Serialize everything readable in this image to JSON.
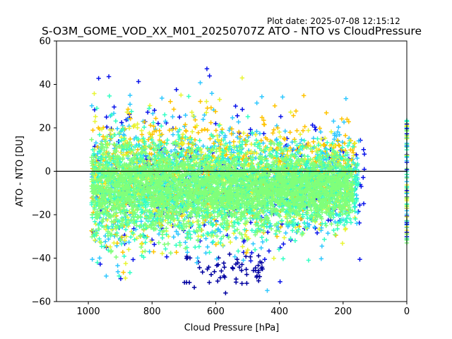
{
  "plot_date": "Plot date: 2025-07-08 12:15:12",
  "chart_data": {
    "type": "scatter",
    "title": "S-O3M_GOME_VOD_XX_M01_20250707Z ATO - NTO vs CloudPressure",
    "xlabel": "Cloud Pressure [hPa]",
    "ylabel": "ATO - NTO [DU]",
    "xlim": [
      1100,
      0
    ],
    "ylim": [
      -60,
      60
    ],
    "x_axis_inverted": true,
    "xticks": [
      1000,
      800,
      600,
      400,
      200,
      0
    ],
    "yticks": [
      -60,
      -40,
      -20,
      0,
      20,
      40,
      60
    ],
    "marker": "+",
    "reference_line_y": 0,
    "grid": false,
    "legend": "none",
    "colors": {
      "light_green": "#80ff7a",
      "cyan_green": "#33ffc4",
      "cyan": "#2fc8ff",
      "yellow": "#e8f533",
      "orange": "#ffc300",
      "blue": "#0a14ea",
      "dark_blue": "#0000a0"
    },
    "point_clouds": [
      {
        "color": "blue",
        "x_range": [
          990,
          130
        ],
        "y_mean": -4,
        "y_spread": 48,
        "count": 320
      },
      {
        "color": "dark_blue",
        "x_range": [
          700,
          450
        ],
        "y_mean": -45,
        "y_spread": 12,
        "count": 60
      },
      {
        "color": "cyan",
        "x_range": [
          990,
          150
        ],
        "y_mean": -5,
        "y_spread": 40,
        "count": 900
      },
      {
        "color": "orange",
        "x_range": [
          990,
          160
        ],
        "y_mean": 0,
        "y_spread": 36,
        "count": 700
      },
      {
        "color": "yellow",
        "x_range": [
          990,
          160
        ],
        "y_mean": -5,
        "y_spread": 38,
        "count": 700
      },
      {
        "color": "cyan_green",
        "x_range": [
          990,
          150
        ],
        "y_mean": -8,
        "y_spread": 32,
        "count": 1600
      },
      {
        "color": "light_green",
        "x_range": [
          990,
          170
        ],
        "y_mean": -8,
        "y_spread": 24,
        "count": 2600
      }
    ],
    "edge_column": {
      "x": 0,
      "y_range": [
        -33,
        24
      ],
      "colors": [
        "blue",
        "cyan",
        "yellow",
        "light_green",
        "cyan_green"
      ]
    }
  }
}
